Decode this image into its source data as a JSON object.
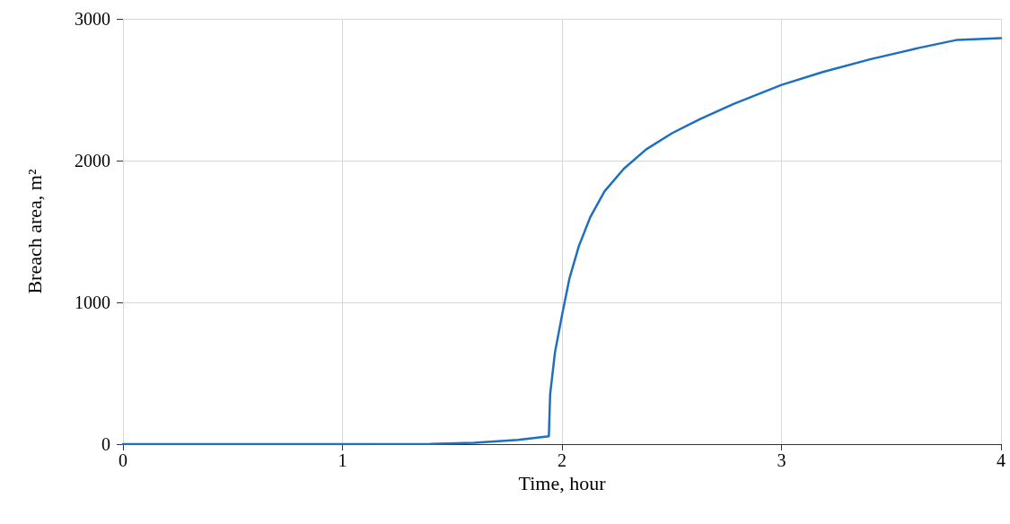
{
  "chart_data": {
    "type": "line",
    "xlabel": "Time, hour",
    "ylabel": "Breach area, m²",
    "x": [
      0,
      0.5,
      1,
      1.4,
      1.6,
      1.8,
      1.94,
      1.946,
      1.968,
      2.0,
      2.034,
      2.077,
      2.129,
      2.194,
      2.282,
      2.384,
      2.501,
      2.632,
      2.779,
      3.0,
      3.188,
      3.407,
      3.626,
      3.801,
      4.0
    ],
    "series": [
      {
        "color": "#1f6fc0",
        "values": [
          0,
          0,
          0,
          2,
          10,
          30,
          55,
          352,
          648,
          909,
          1170,
          1398,
          1602,
          1784,
          1943,
          2080,
          2193,
          2295,
          2398,
          2534,
          2625,
          2716,
          2795,
          2852,
          2864
        ]
      }
    ],
    "xlim": [
      0,
      4
    ],
    "xticks": [
      0,
      1,
      2,
      3,
      4
    ],
    "ylim": [
      0,
      3000
    ],
    "yticks": [
      0,
      1000,
      2000,
      3000
    ],
    "grid": true,
    "marker": "none",
    "line_style": "solid"
  }
}
